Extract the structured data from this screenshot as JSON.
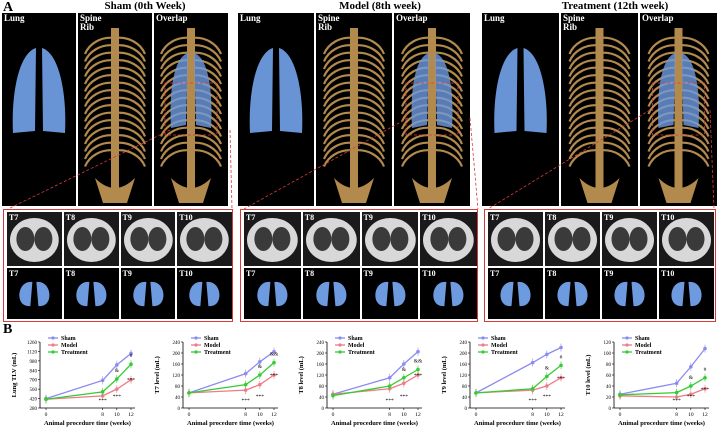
{
  "panel_a_letter": "A",
  "panel_b_letter": "B",
  "groups": [
    {
      "title": "Sham (0th Week)",
      "views": [
        "Lung",
        "Spine\nRib",
        "Overlap"
      ]
    },
    {
      "title": "Model (8th week)",
      "views": [
        "Lung",
        "Spine\nRib",
        "Overlap"
      ]
    },
    {
      "title": "Treatment (12th week)",
      "views": [
        "Lung",
        "Spine\nRib",
        "Overlap"
      ]
    }
  ],
  "slice_labels": [
    "T7",
    "T8",
    "T9",
    "T10"
  ],
  "colors": {
    "sham": "#8c8cf0",
    "model": "#f07a86",
    "treatment": "#33cc33",
    "lung": "#6e9be0",
    "bone": "#b38a4d",
    "frame": "#d83a3a"
  },
  "chart_data": [
    {
      "type": "line",
      "ylabel": "Lung TLV (mL)",
      "xlabel": "Animal procedure time (weeks)",
      "x": [
        0,
        8,
        10,
        12
      ],
      "yticks": [
        "280",
        "420",
        "560",
        "700",
        "840",
        "980",
        "1120",
        "1260"
      ],
      "ylim": [
        280,
        1260
      ],
      "series": [
        {
          "name": "Sham",
          "values": [
            420,
            690,
            920,
            1090
          ]
        },
        {
          "name": "Model",
          "values": [
            410,
            460,
            560,
            700
          ]
        },
        {
          "name": "Treatment",
          "values": [
            410,
            520,
            710,
            930
          ]
        }
      ],
      "annotations": [
        "***",
        "***",
        "***",
        "&",
        "#"
      ]
    },
    {
      "type": "line",
      "ylabel": "T7 level (mL)",
      "xlabel": "Animal procedure time (weeks)",
      "x": [
        0,
        8,
        10,
        12
      ],
      "yticks": [
        "0",
        "40",
        "80",
        "120",
        "160",
        "200",
        "240"
      ],
      "ylim": [
        0,
        240
      ],
      "series": [
        {
          "name": "Sham",
          "values": [
            55,
            125,
            168,
            205
          ]
        },
        {
          "name": "Model",
          "values": [
            55,
            65,
            85,
            120
          ]
        },
        {
          "name": "Treatment",
          "values": [
            55,
            85,
            120,
            165
          ]
        }
      ],
      "annotations": [
        "***",
        "***",
        "***",
        "&",
        "&&"
      ]
    },
    {
      "type": "line",
      "ylabel": "T8 level (mL)",
      "xlabel": "Animal procedure time (weeks)",
      "x": [
        0,
        8,
        10,
        12
      ],
      "yticks": [
        "0",
        "40",
        "80",
        "120",
        "160",
        "200",
        "240"
      ],
      "ylim": [
        0,
        240
      ],
      "series": [
        {
          "name": "Sham",
          "values": [
            50,
            110,
            160,
            205
          ]
        },
        {
          "name": "Model",
          "values": [
            50,
            70,
            90,
            120
          ]
        },
        {
          "name": "Treatment",
          "values": [
            45,
            80,
            110,
            140
          ]
        }
      ],
      "annotations": [
        "***",
        "***",
        "***",
        "&",
        "&&"
      ]
    },
    {
      "type": "line",
      "ylabel": "T9 level (mL)",
      "xlabel": "Animal procedure time (weeks)",
      "x": [
        0,
        8,
        10,
        12
      ],
      "yticks": [
        "0",
        "40",
        "80",
        "120",
        "160",
        "200",
        "240"
      ],
      "ylim": [
        0,
        240
      ],
      "series": [
        {
          "name": "Sham",
          "values": [
            55,
            165,
            195,
            220
          ]
        },
        {
          "name": "Model",
          "values": [
            55,
            65,
            80,
            110
          ]
        },
        {
          "name": "Treatment",
          "values": [
            55,
            70,
            115,
            155
          ]
        }
      ],
      "annotations": [
        "***",
        "***",
        "***",
        "&",
        "#"
      ]
    },
    {
      "type": "line",
      "ylabel": "T10 level (mL)",
      "xlabel": "Animal procedure time (weeks)",
      "x": [
        0,
        8,
        10,
        12
      ],
      "yticks": [
        "0",
        "20",
        "40",
        "60",
        "80",
        "100",
        "120"
      ],
      "ylim": [
        0,
        120
      ],
      "series": [
        {
          "name": "Sham",
          "values": [
            25,
            45,
            75,
            108
          ]
        },
        {
          "name": "Model",
          "values": [
            22,
            20,
            25,
            35
          ]
        },
        {
          "name": "Treatment",
          "values": [
            24,
            28,
            40,
            55
          ]
        }
      ],
      "annotations": [
        "***",
        "***",
        "***",
        "&",
        "#"
      ]
    }
  ]
}
